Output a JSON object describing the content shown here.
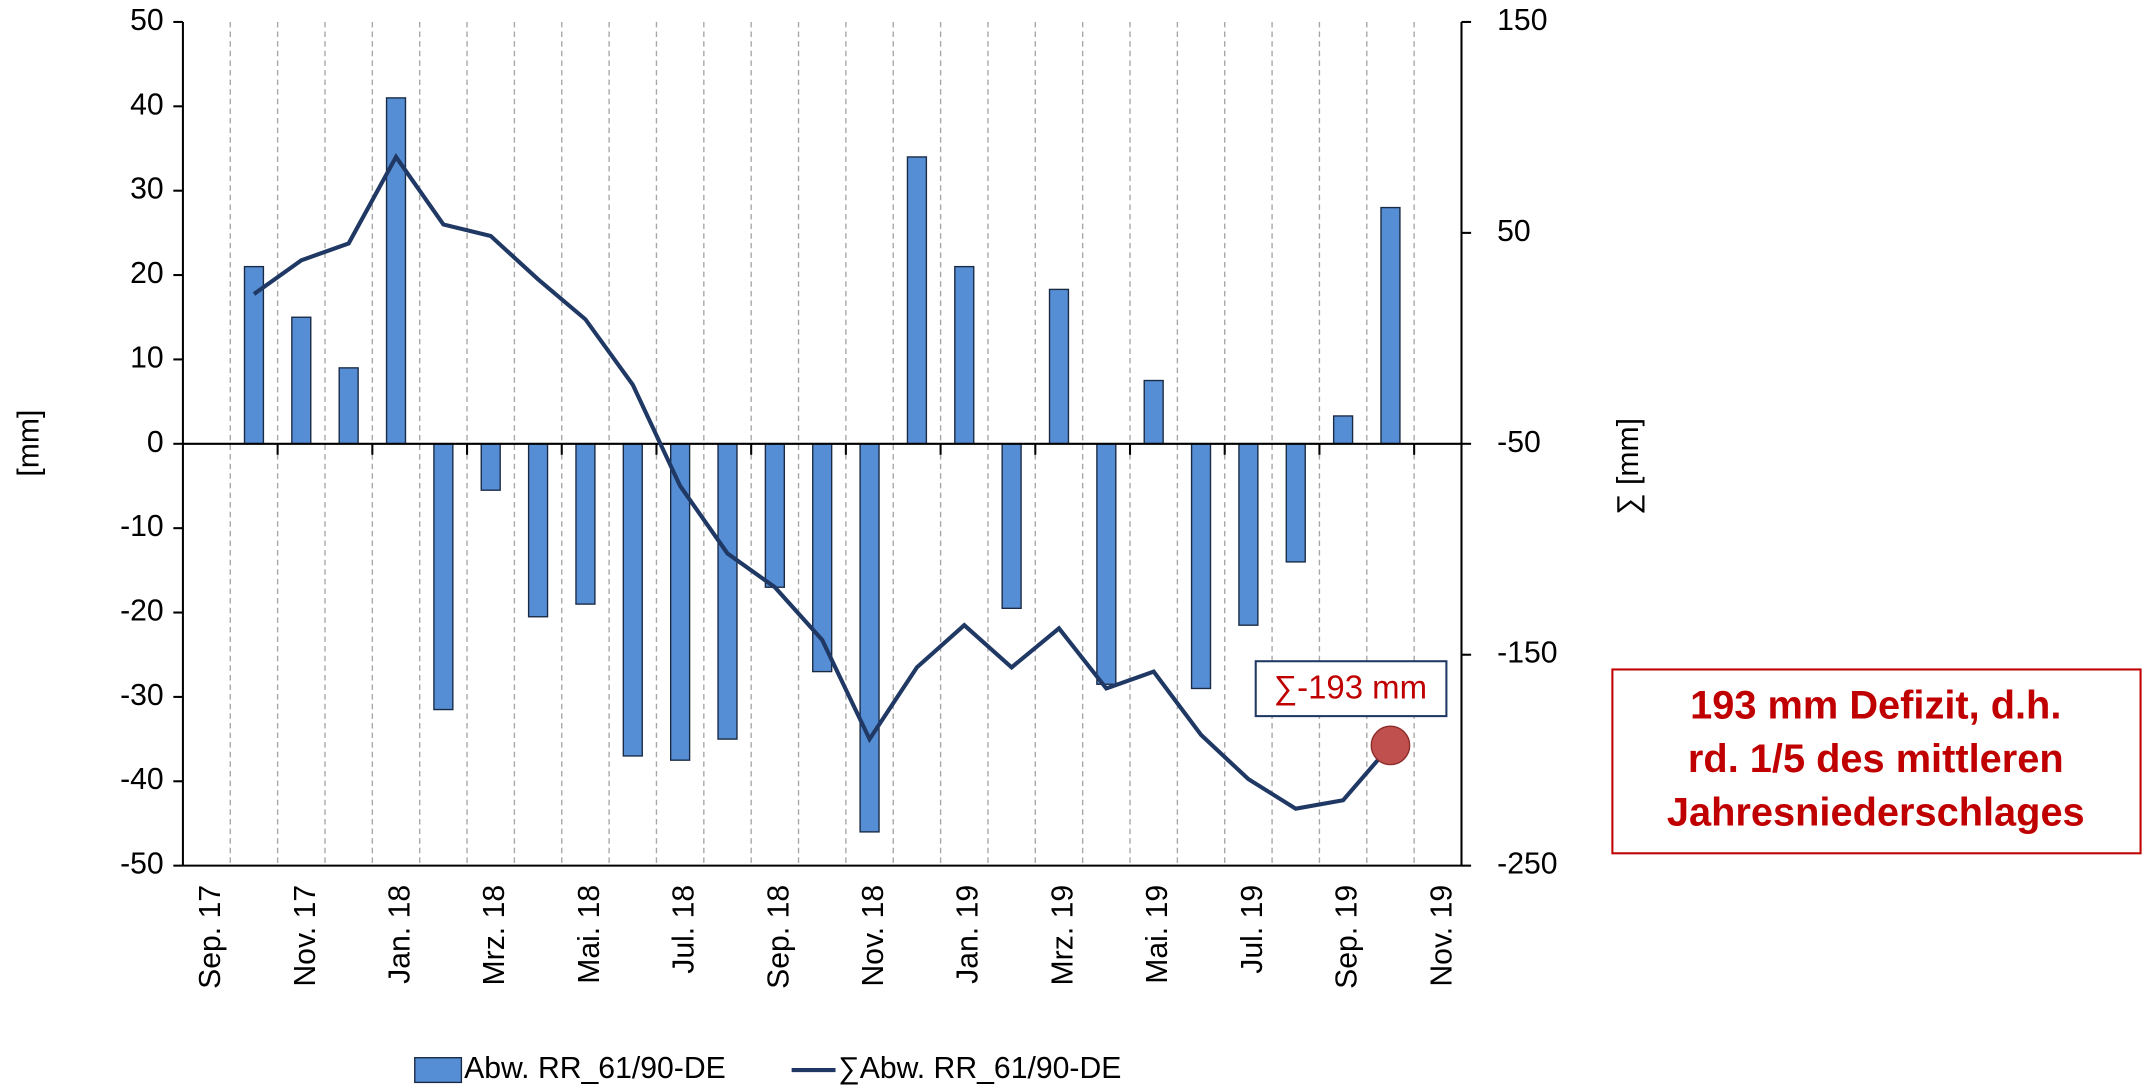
{
  "chart_data": {
    "type": "bar_line",
    "y_label": "[mm]",
    "y2_label": "∑ [mm]",
    "categories": [
      "Sep. 17",
      null,
      "Nov. 17",
      null,
      "Jan. 18",
      null,
      "Mrz. 18",
      null,
      "Mai. 18",
      null,
      "Jul. 18",
      null,
      "Sep. 18",
      null,
      "Nov. 18",
      null,
      "Jan. 19",
      null,
      "Mrz. 19",
      null,
      "Mai. 19",
      null,
      "Jul. 19",
      null,
      "Sep. 19",
      null,
      "Nov. 19"
    ],
    "series": [
      {
        "name": "Abw. RR_61/90-DE",
        "type": "bar",
        "color": "#558ed5",
        "values": [
          null,
          21,
          15,
          9,
          41,
          -31.5,
          -5.5,
          -20.5,
          -19,
          -37,
          -37.5,
          -35,
          -17,
          -27,
          -46,
          34,
          21,
          -19.5,
          18.3,
          -28.5,
          7.5,
          -29,
          -21.5,
          -14,
          3.3,
          28,
          null
        ]
      },
      {
        "name": "∑Abw. RR_61/90-DE",
        "type": "line",
        "axis": "y2",
        "color": "#1f3864",
        "values": [
          null,
          21,
          37,
          45,
          86,
          54,
          48.5,
          28,
          9,
          -22,
          -70,
          -102,
          -118,
          -143,
          -190,
          -156,
          -136,
          -156,
          -137.5,
          -166,
          -158,
          -188,
          -209,
          -223,
          -219,
          -193,
          null
        ]
      }
    ],
    "ylim": [
      -50,
      50
    ],
    "yticks": [
      -50,
      -40,
      -30,
      -20,
      -10,
      0,
      10,
      20,
      30,
      40,
      50
    ],
    "y2lim": [
      -250,
      150
    ],
    "y2ticks": [
      -250,
      -150,
      -50,
      50,
      150
    ],
    "grid": true,
    "legend": "bottom",
    "annotation": "∑-193 mm",
    "note_lines": [
      "193 mm Defizit, d.h.",
      "rd. 1/5 des mittleren",
      "Jahresniederschlages"
    ]
  }
}
